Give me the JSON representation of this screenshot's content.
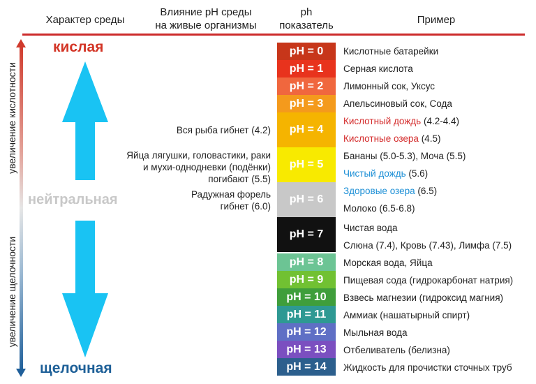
{
  "headers": {
    "col1": "Характер среды",
    "col2_l1": "Влияние pH среды",
    "col2_l2": "на живые организмы",
    "col3_l1": "ph",
    "col3_l2": "показатель",
    "col4": "Пример"
  },
  "axis": {
    "acid_label": "увеличение кислотности",
    "alkali_label": "увеличение щелочности"
  },
  "states": {
    "acid": "кислая",
    "neutral": "нейтральная",
    "alkaline": "щелочная"
  },
  "colors": {
    "acid": "#d33526",
    "neutral": "#c8c8c8",
    "alkaline": "#1d5f97",
    "arrow": "#19c3f3"
  },
  "effects": {
    "e1": "Вся рыба гибнет (4.2)",
    "e2_l1": "Яйца лягушки, головастики, раки",
    "e2_l2": "и мухи-однодневки (подёнки)",
    "e2_l3": "погибают (5.5)",
    "e3_l1": "Радужная форель",
    "e3_l2": "гибнет (6.0)"
  },
  "ph_cells": [
    {
      "label": "pH = 0",
      "color": "#c7361a"
    },
    {
      "label": "pH = 1",
      "color": "#e8331d"
    },
    {
      "label": "pH = 2",
      "color": "#f0673e"
    },
    {
      "label": "pH = 3",
      "color": "#f49a1c"
    },
    {
      "label": "pH = 4",
      "color": "#f5b400"
    },
    {
      "label": "pH = 5",
      "color": "#f8ea00"
    },
    {
      "label": "pH = 6",
      "color": "#c8c8c8"
    },
    {
      "label": "pH = 7",
      "color": "#111111"
    },
    {
      "label": "pH = 8",
      "color": "#6cc494"
    },
    {
      "label": "pH = 9",
      "color": "#71c132"
    },
    {
      "label": "pH = 10",
      "color": "#3f9e3b"
    },
    {
      "label": "pH = 11",
      "color": "#2e9993"
    },
    {
      "label": "pH = 12",
      "color": "#5f6fc5"
    },
    {
      "label": "pH = 13",
      "color": "#7b4fc0"
    },
    {
      "label": "pH = 14",
      "color": "#2c5f8d"
    }
  ],
  "examples": {
    "r0": "Кислотные батарейки",
    "r1": "Серная кислота",
    "r2": "Лимонный сок, Уксус",
    "r3": "Апельсиновый сок, Сода",
    "r4a_name": "Кислотный дождь",
    "r4a_val": "(4.2-4.4)",
    "r4b_name": "Кислотные озера",
    "r4b_val": "(4.5)",
    "r5a": "Бананы (5.0-5.3), Моча (5.5)",
    "r5b_name": "Чистый дождь",
    "r5b_val": "(5.6)",
    "r6a_name": "Здоровые озера",
    "r6a_val": "(6.5)",
    "r6b": "Молоко (6.5-6.8)",
    "r7a": "Чистая вода",
    "r7b": "Слюна (7.4), Кровь (7.43), Лимфа (7.5)",
    "r8": "Морская вода, Яйца",
    "r9": "Пищевая сода (гидрокарбонат натрия)",
    "r10": "Взвесь магнезии (гидроксид магния)",
    "r11": "Аммиак (нашатырный спирт)",
    "r12": "Мыльная вода",
    "r13": "Отбеливатель (белизна)",
    "r14": "Жидкость для прочистки сточных труб"
  }
}
